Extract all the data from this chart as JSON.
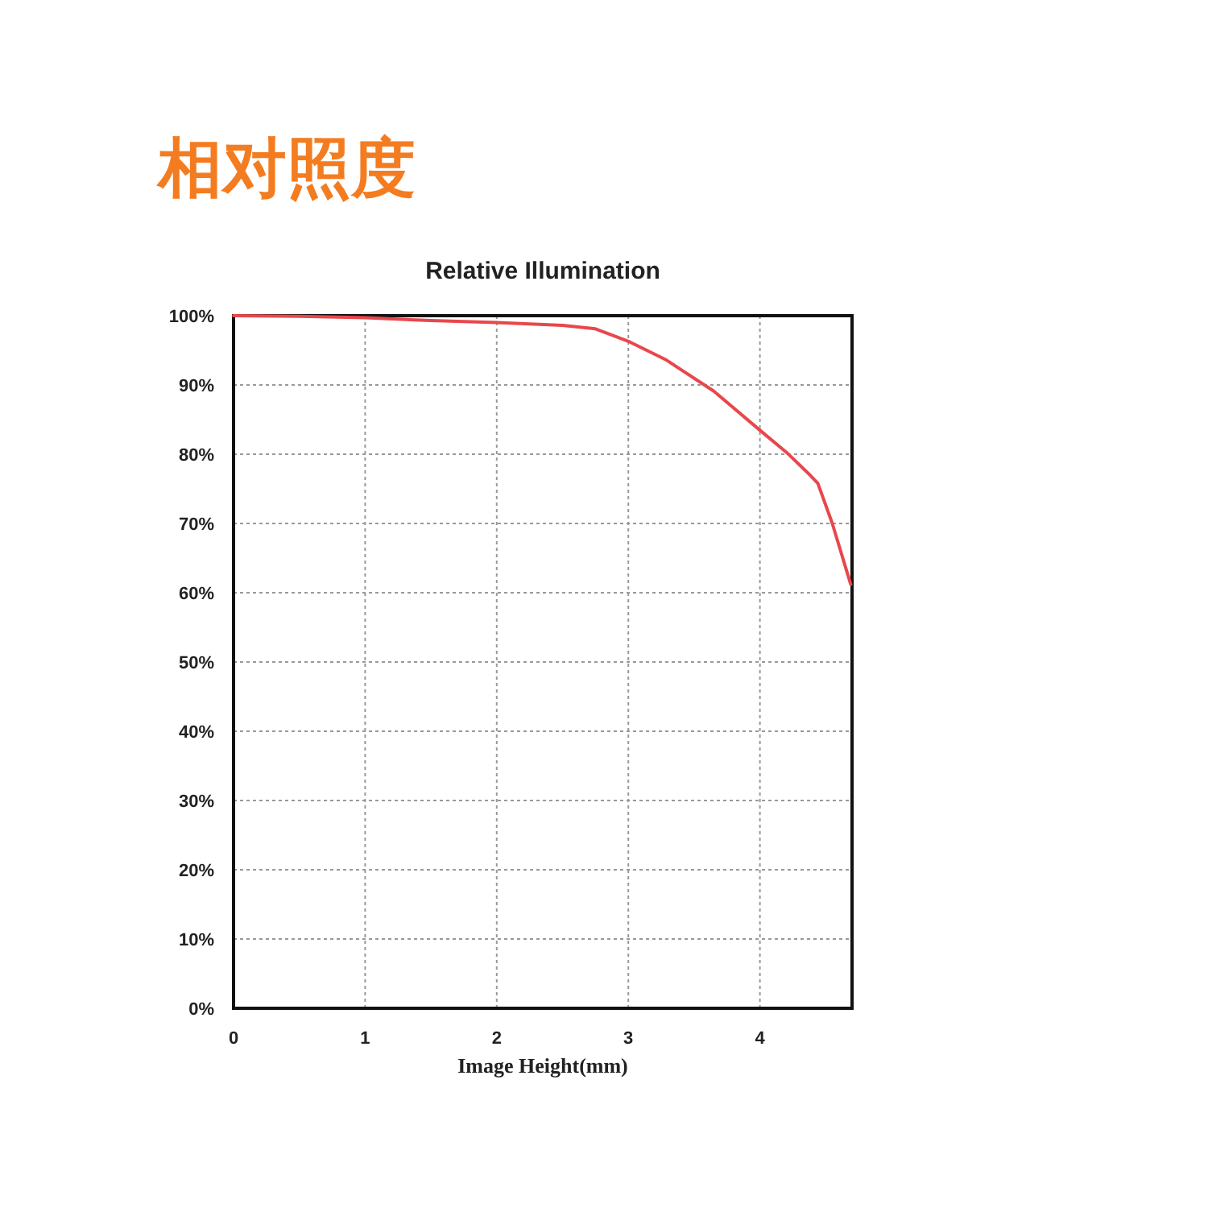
{
  "chart_data": {
    "type": "line",
    "title": "相对照度",
    "subtitle": "Relative Illumination",
    "xlabel": "Image Height(mm)",
    "x": [
      0,
      0.5,
      1,
      1.5,
      2,
      2.5,
      2.75,
      3,
      3.28,
      3.65,
      4.01,
      4.2,
      4.38,
      4.44,
      4.55,
      4.69
    ],
    "values": [
      100,
      99.9,
      99.7,
      99.3,
      99,
      98.6,
      98.1,
      96.3,
      93.7,
      89.1,
      83.3,
      80.3,
      77,
      75.8,
      70,
      61.2
    ],
    "color": "#e8474c",
    "xlim": [
      0,
      4.7
    ],
    "xticks": [
      0,
      1,
      2,
      3,
      4
    ],
    "ylim": [
      0,
      100
    ],
    "yticks": [
      {
        "value": 0,
        "label": "0%"
      },
      {
        "value": 10,
        "label": "10%"
      },
      {
        "value": 20,
        "label": "20%"
      },
      {
        "value": 30,
        "label": "30%"
      },
      {
        "value": 40,
        "label": "40%"
      },
      {
        "value": 50,
        "label": "50%"
      },
      {
        "value": 60,
        "label": "60%"
      },
      {
        "value": 70,
        "label": "70%"
      },
      {
        "value": 80,
        "label": "80%"
      },
      {
        "value": 90,
        "label": "90%"
      },
      {
        "value": 100,
        "label": "100%"
      }
    ],
    "grid": true
  }
}
